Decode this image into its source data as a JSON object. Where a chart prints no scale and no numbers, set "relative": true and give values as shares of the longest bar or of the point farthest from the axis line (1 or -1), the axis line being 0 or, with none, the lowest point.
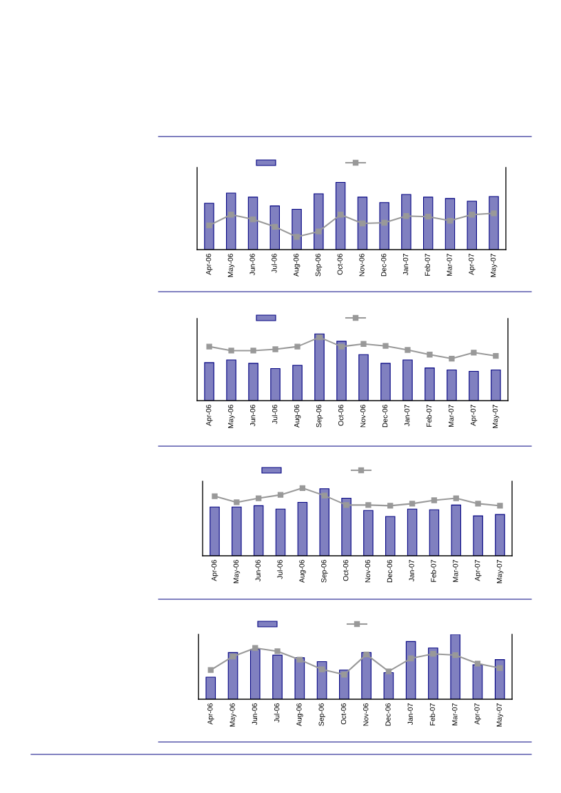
{
  "chart_data": [
    {
      "type": "bar",
      "relative": true,
      "categories": [
        "Apr-06",
        "May-06",
        "Jun-06",
        "Jul-06",
        "Aug-06",
        "Sep-06",
        "Oct-06",
        "Nov-06",
        "Dec-06",
        "Jan-07",
        "Feb-07",
        "Mar-07",
        "Apr-07",
        "May-07"
      ],
      "series": [
        {
          "color": "#8080c0",
          "values": [
            0.69,
            0.84,
            0.78,
            0.65,
            0.6,
            0.83,
            1,
            0.78,
            0.7,
            0.82,
            0.78,
            0.76,
            0.72,
            0.79
          ]
        },
        {
          "type": "line",
          "color": "#999999",
          "marker": "square",
          "values": [
            0.36,
            0.52,
            0.45,
            0.34,
            0.19,
            0.27,
            0.52,
            0.39,
            0.4,
            0.5,
            0.49,
            0.43,
            0.52,
            0.54
          ]
        }
      ]
    },
    {
      "type": "bar",
      "relative": true,
      "categories": [
        "Apr-06",
        "May-06",
        "Jun-06",
        "Jul-06",
        "Aug-06",
        "Sep-06",
        "Oct-06",
        "Nov-06",
        "Dec-06",
        "Jan-07",
        "Feb-07",
        "Mar-07",
        "Apr-07",
        "May-07"
      ],
      "series": [
        {
          "color": "#8080c0",
          "values": [
            0.57,
            0.61,
            0.56,
            0.48,
            0.53,
            1,
            0.89,
            0.69,
            0.56,
            0.61,
            0.49,
            0.46,
            0.44,
            0.46
          ]
        },
        {
          "type": "line",
          "color": "#999999",
          "marker": "square",
          "values": [
            0.81,
            0.75,
            0.75,
            0.77,
            0.81,
            0.95,
            0.81,
            0.85,
            0.82,
            0.76,
            0.69,
            0.63,
            0.72,
            0.67
          ]
        }
      ]
    },
    {
      "type": "bar",
      "relative": true,
      "categories": [
        "Apr-06",
        "May-06",
        "Jun-06",
        "Jul-06",
        "Aug-06",
        "Sep-06",
        "Oct-06",
        "Nov-06",
        "Dec-06",
        "Jan-07",
        "Feb-07",
        "Mar-07",
        "Apr-07",
        "May-07"
      ],
      "series": [
        {
          "color": "#8080c0",
          "values": [
            0.72,
            0.72,
            0.74,
            0.69,
            0.79,
            0.99,
            0.85,
            0.67,
            0.58,
            0.69,
            0.68,
            0.75,
            0.59,
            0.61
          ]
        },
        {
          "type": "line",
          "color": "#999999",
          "marker": "square",
          "values": [
            0.88,
            0.79,
            0.85,
            0.9,
            1,
            0.89,
            0.75,
            0.75,
            0.74,
            0.77,
            0.82,
            0.85,
            0.77,
            0.74
          ]
        }
      ]
    },
    {
      "type": "bar",
      "relative": true,
      "categories": [
        "Apr-06",
        "May-06",
        "Jun-06",
        "Jul-06",
        "Aug-06",
        "Sep-06",
        "Oct-06",
        "Nov-06",
        "Dec-06",
        "Jan-07",
        "Feb-07",
        "Mar-07",
        "Apr-07",
        "May-07"
      ],
      "series": [
        {
          "color": "#8080c0",
          "values": [
            0.34,
            0.72,
            0.77,
            0.68,
            0.64,
            0.58,
            0.45,
            0.72,
            0.41,
            0.89,
            0.79,
            1,
            0.53,
            0.61
          ]
        },
        {
          "type": "line",
          "color": "#999999",
          "marker": "square",
          "values": [
            0.45,
            0.66,
            0.79,
            0.74,
            0.61,
            0.46,
            0.38,
            0.69,
            0.43,
            0.63,
            0.7,
            0.68,
            0.55,
            0.48
          ]
        }
      ]
    }
  ]
}
